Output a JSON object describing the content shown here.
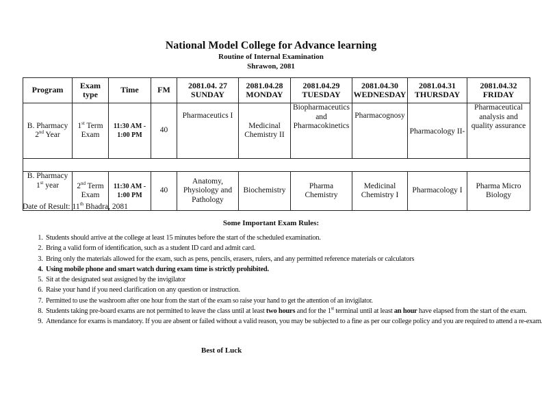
{
  "header": {
    "college": "National Model College for Advance learning",
    "subtitle": "Routine of Internal Examination",
    "session": "Shrawon, 2081"
  },
  "table": {
    "columns": [
      "Program",
      "Exam type",
      "Time",
      "FM"
    ],
    "days": [
      {
        "date": "2081.04. 27",
        "day": "SUNDAY"
      },
      {
        "date": "2081.04.28",
        "day": "MONDAY"
      },
      {
        "date": "2081.04.29",
        "day": "TUESDAY"
      },
      {
        "date": "2081.04.30",
        "day": "WEDNESDAY"
      },
      {
        "date": "2081.04.31",
        "day": "THURSDAY"
      },
      {
        "date": "2081.04.32",
        "day": "FRIDAY"
      }
    ],
    "rows": [
      {
        "program": "B. Pharmacy",
        "year_num": "2",
        "year_sup": "nd",
        "year": " Year",
        "exam_num": "1",
        "exam_sup": "st",
        "exam": " Term",
        "exam2": "Exam",
        "time1": "11:30 AM -",
        "time2": "1:00 PM",
        "fm": "40",
        "subjects": [
          "Pharmaceutics I",
          "Medicinal Chemistry II",
          "Biopharmaceutics and Pharmacokinetics",
          "Pharmacognosy",
          "Pharmacology II-",
          "Pharmaceutical analysis and quality assurance"
        ]
      },
      {
        "program": "B. Pharmacy",
        "year_num": "1",
        "year_sup": "st",
        "year": " year",
        "exam_num": "2",
        "exam_sup": "nd",
        "exam": " Term",
        "exam2": "Exam",
        "time1": "11:30 AM -",
        "time2": "1:00 PM",
        "fm": "40",
        "subjects": [
          "Anatomy, Physiology and Pathology",
          "Biochemistry",
          "Pharma Chemistry",
          "Medicinal Chemistry I",
          "Pharmacology I",
          "Pharma Micro Biology"
        ]
      }
    ]
  },
  "result": {
    "prefix": "Date of Result: 11",
    "sup": "th",
    "suffix": " Bhadra, 2081"
  },
  "rules": {
    "title": "Some Important Exam Rules:",
    "items": [
      "Students should arrive at the college at least 15 minutes before the start of the scheduled examination.",
      "Bring a valid form of identification, such as a student ID card and admit card.",
      "Bring only the materials allowed for the exam, such as pens, pencils, erasers, rulers, and any permitted reference materials or calculators",
      "Using mobile phone and smart watch during exam time is strictly prohibited.",
      "Sit at the designated seat assigned by the invigilator",
      "Raise your hand if you need clarification on any question or instruction.",
      "Permitted to use the washroom after one hour from the start of the exam so raise your hand to get the attention of an invigilator.",
      "",
      "Attendance for exams is mandatory. If you are absent or failed without a valid reason, you may be subjected to a fine as per our college policy and you are required to attend a re-exam."
    ],
    "rule8": {
      "a": "Students taking pre-board exams are not permitted to leave the class until at least ",
      "b": "two hours",
      "c": " and for the 1",
      "sup": "st",
      "d": " terminal until at least ",
      "e": "an hour",
      "f": " have elapsed from the start of the exam."
    }
  },
  "footer": "Best of Luck"
}
